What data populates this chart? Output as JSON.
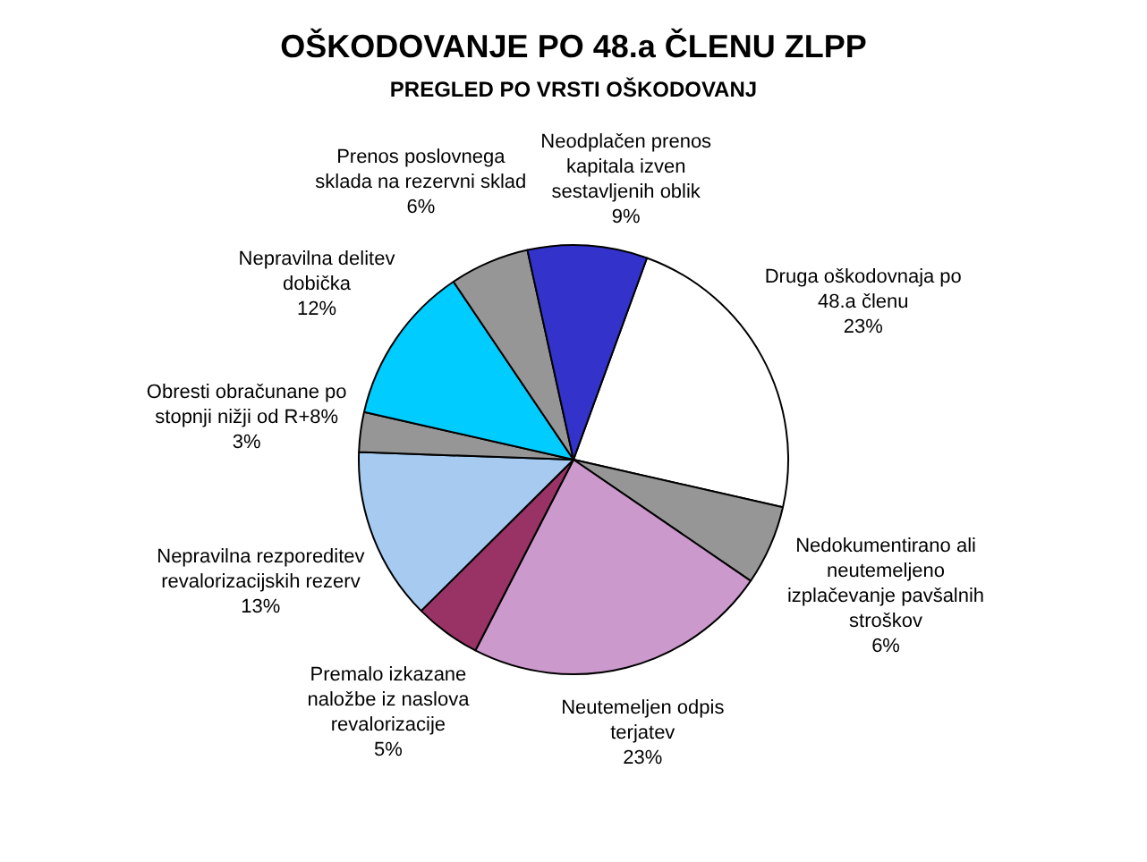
{
  "chart_data": {
    "type": "pie",
    "title": "OŠKODOVANJE PO 48.a ČLENU ZLPP",
    "subtitle": "PREGLED PO VRSTI OŠKODOVANJ",
    "categories": [
      "Druga oškodovnaja po 48.a členu",
      "Nedokumentirano ali neutemeljeno izplačevanje pavšalnih stroškov",
      "Neutemeljen odpis terjatev",
      "Premalo izkazane naložbe iz naslova revalorizacije",
      "Nepravilna rezporeditev revalorizacijskih rezerv",
      "Obresti obračunane po stopnji nižji od R+8%",
      "Nepravilna delitev dobička",
      "Prenos poslovnega sklada na rezervni sklad",
      "Neodplačen prenos kapitala izven sestavljenih oblik"
    ],
    "values": [
      23,
      6,
      23,
      5,
      13,
      3,
      12,
      6,
      9
    ],
    "colors": [
      "#ffffff",
      "#969696",
      "#cc99cc",
      "#993366",
      "#a6caf0",
      "#969696",
      "#00ccff",
      "#969696",
      "#3333cc"
    ],
    "value_labels": [
      "23%",
      "6%",
      "23%",
      "5%",
      "13%",
      "3%",
      "12%",
      "6%",
      "9%"
    ],
    "legend": false
  }
}
